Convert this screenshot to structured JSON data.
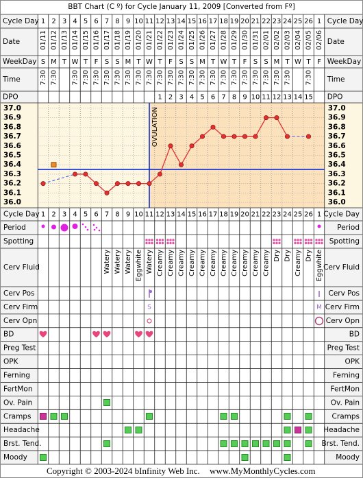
{
  "header": {
    "title": "BBT Chart (C º) for Cycle January 11, 2009  [Converted from Fº]"
  },
  "row_labels": {
    "top": [
      "Cycle Day",
      "Date",
      "WeekDay",
      "Time",
      "DPO"
    ],
    "bottom": [
      "Cycle Day",
      "Period",
      "Spotting",
      "Cerv Fluid",
      "Cerv Pos",
      "Cerv Firm",
      "Cerv Opn",
      "BD",
      "Preg Test",
      "OPK",
      "Ferning",
      "FertMon",
      "Ov. Pain",
      "Cramps",
      "Headache",
      "Brst. Tend.",
      "Moody"
    ]
  },
  "cycle_days": [
    1,
    2,
    3,
    4,
    5,
    6,
    7,
    8,
    9,
    10,
    11,
    12,
    13,
    14,
    15,
    16,
    17,
    18,
    19,
    20,
    21,
    22,
    23,
    24,
    25,
    26,
    1
  ],
  "dates": [
    "01/11",
    "01/12",
    "01/13",
    "01/14",
    "01/15",
    "01/16",
    "01/17",
    "01/18",
    "01/19",
    "01/20",
    "01/21",
    "01/22",
    "01/23",
    "01/24",
    "01/25",
    "01/26",
    "01/27",
    "01/28",
    "01/29",
    "01/30",
    "01/31",
    "02/01",
    "02/02",
    "02/03",
    "02/04",
    "02/05",
    "02/06"
  ],
  "weekdays": [
    "S",
    "M",
    "T",
    "W",
    "T",
    "F",
    "S",
    "S",
    "M",
    "T",
    "W",
    "T",
    "F",
    "S",
    "S",
    "M",
    "T",
    "W",
    "T",
    "F",
    "S",
    "S",
    "M",
    "T",
    "W",
    "T",
    "F"
  ],
  "times": [
    "7:30",
    "7:30",
    null,
    "7:30",
    "7:30",
    "7:30",
    "7:30",
    "7:30",
    "7:30",
    "7:30",
    "7:30",
    "7:30",
    "7:30",
    "7:30",
    "7:30",
    "7:30",
    "7:30",
    "7:30",
    "7:30",
    "7:30",
    "7:30",
    "7:30",
    "7:30",
    "7:30",
    null,
    "7:30",
    null
  ],
  "dpo": [
    null,
    null,
    null,
    null,
    null,
    null,
    null,
    null,
    null,
    null,
    null,
    1,
    2,
    3,
    4,
    5,
    6,
    7,
    8,
    9,
    10,
    11,
    12,
    13,
    14,
    15,
    null
  ],
  "chart_data": {
    "type": "line",
    "color": "#e03030",
    "values": [
      36.2,
      null,
      null,
      36.3,
      36.3,
      36.2,
      36.1,
      36.2,
      36.2,
      36.2,
      36.2,
      36.3,
      36.6,
      36.4,
      36.6,
      36.7,
      36.8,
      36.7,
      36.7,
      36.7,
      36.7,
      36.9,
      36.9,
      36.7,
      null,
      36.7,
      null
    ],
    "excluded_values": [
      null,
      36.4,
      null,
      null,
      null,
      null,
      null,
      null,
      null,
      null,
      null,
      null,
      null,
      null,
      null,
      null,
      null,
      null,
      null,
      null,
      null,
      null,
      null,
      null,
      null,
      null,
      null
    ],
    "ylim": [
      35.95,
      37.05
    ],
    "yticks": [
      {
        "value": 36.0,
        "label": "36.0"
      },
      36.1,
      36.2,
      36.3,
      36.4,
      36.5,
      36.6,
      36.7,
      36.8,
      36.9,
      {
        "value": 37.0,
        "label": "37.0"
      }
    ],
    "grid": true,
    "coverline": 36.35,
    "ovulation_day": 11,
    "ovulation_label": "OVULATION"
  },
  "cerv_fluid": [
    null,
    null,
    null,
    null,
    null,
    null,
    "Watery",
    "Watery",
    "Watery",
    "Eggwhite",
    "Watery",
    "Creamy",
    "Creamy",
    "Creamy",
    "Creamy",
    "Creamy",
    "Creamy",
    "Creamy",
    "Creamy",
    "Creamy",
    "Creamy",
    "Creamy",
    "Dry",
    "Dry",
    "Creamy",
    "Dry",
    "Eggwhite"
  ],
  "cerv_firm": [
    null,
    null,
    null,
    null,
    null,
    null,
    null,
    null,
    null,
    null,
    "S",
    null,
    null,
    null,
    null,
    null,
    null,
    null,
    null,
    null,
    null,
    null,
    null,
    null,
    null,
    null,
    "M"
  ],
  "footer": {
    "copyright": "Copyright © 2003-2024 bInfinity Web Inc.",
    "site": "www.MyMonthlyCycles.com"
  }
}
